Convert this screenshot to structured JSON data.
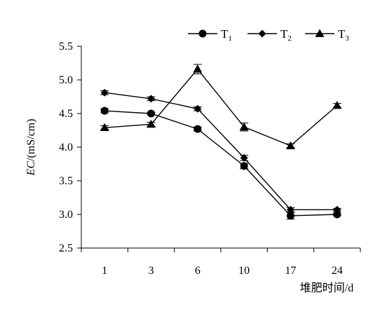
{
  "chart_data": {
    "type": "line",
    "categories": [
      "1",
      "3",
      "6",
      "10",
      "17",
      "24"
    ],
    "xlabel": "堆肥时间/d",
    "ylabel": {
      "italic": "EC",
      "rest": "/(mS/cm)"
    },
    "ylim": [
      2.5,
      5.5
    ],
    "yticks": [
      "2.5",
      "3.0",
      "3.5",
      "4.0",
      "4.5",
      "5.0",
      "5.5"
    ],
    "grid": false,
    "legend_position": "top-right",
    "series": [
      {
        "name": "T",
        "sub": "1",
        "marker": "circle",
        "values": [
          4.54,
          4.5,
          4.27,
          3.72,
          2.98,
          3.0
        ],
        "errors": [
          0.03,
          0.02,
          0.03,
          0.04,
          0.05,
          0.02
        ]
      },
      {
        "name": "T",
        "sub": "2",
        "marker": "diamond",
        "values": [
          4.81,
          4.72,
          4.57,
          3.84,
          3.07,
          3.07
        ],
        "errors": [
          0.03,
          0.03,
          0.03,
          0.04,
          0.03,
          0.02
        ]
      },
      {
        "name": "T",
        "sub": "3",
        "marker": "triangle",
        "values": [
          4.29,
          4.34,
          5.16,
          4.3,
          4.02,
          4.62
        ],
        "errors": [
          0.03,
          0.03,
          0.07,
          0.06,
          0.03,
          0.03
        ]
      }
    ]
  }
}
